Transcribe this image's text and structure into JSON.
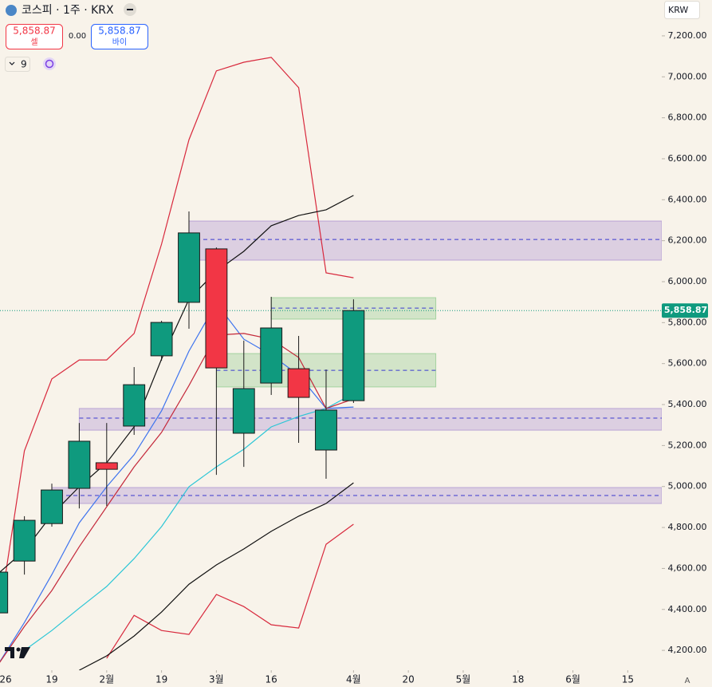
{
  "header": {
    "symbol": "코스피 · 1주 · KRX",
    "sell_price": "5,858.87",
    "sell_label": "셀",
    "spread": "0.00",
    "buy_price": "5,858.87",
    "buy_label": "바이",
    "indicators_count": "9",
    "currency": "KRW",
    "auto_label": "A"
  },
  "chart_data": {
    "type": "candlestick",
    "x": [
      -2,
      -1,
      0,
      1,
      2,
      3,
      4,
      5,
      6,
      7,
      8,
      9,
      10,
      11
    ],
    "open": [
      4383,
      4636,
      4819,
      4991,
      5116,
      5295,
      5638,
      5899,
      6160,
      5260,
      5505,
      5575,
      5178,
      5419
    ],
    "high": [
      4600,
      4855,
      5014,
      5310,
      5310,
      5583,
      5809,
      6343,
      6167,
      5712,
      5926,
      5735,
      5571,
      5914
    ],
    "low": [
      4350,
      4570,
      4804,
      4893,
      4905,
      5252,
      5614,
      5770,
      5057,
      5096,
      5447,
      5213,
      5038,
      5408
    ],
    "close": [
      4582,
      4835,
      4983,
      5221,
      5084,
      5497,
      5801,
      6238,
      5579,
      5478,
      5774,
      5435,
      5373,
      5858.87
    ],
    "up_color": "#0f9a7e",
    "down_color": "#f23645",
    "lines": [
      {
        "color": "#d8283c",
        "values": [
          4297,
          5174,
          5525,
          5618,
          5618,
          5747,
          6183,
          6693,
          7029,
          7071,
          7095,
          6947,
          6043,
          6019
        ]
      },
      {
        "color": "#d8283c",
        "values": [
          null,
          null,
          null,
          null,
          4161,
          4371,
          4297,
          4278,
          4473,
          4414,
          4325,
          4309,
          4718,
          4816
        ]
      },
      {
        "color": "#111111",
        "values": [
          null,
          null,
          null,
          4103,
          4173,
          4270,
          4387,
          4523,
          4617,
          4695,
          4781,
          4855,
          4917,
          5018
        ]
      },
      {
        "color": "#111111",
        "values": [
          4570,
          4687,
          4862,
          4999,
          5116,
          5291,
          5622,
          5914,
          6051,
          6148,
          6273,
          6323,
          6351,
          6421
        ]
      },
      {
        "color": "#3d73ee",
        "values": [
          4122,
          4336,
          4570,
          4823,
          4999,
          5155,
          5369,
          5661,
          5895,
          5719,
          5642,
          5544,
          5381,
          5388
        ]
      },
      {
        "color": "#2cc6d6",
        "values": [
          null,
          4200,
          4297,
          4406,
          4512,
          4648,
          4804,
          4999,
          5096,
          5182,
          5291,
          5342,
          5381,
          5454
        ]
      },
      {
        "color": "#c4283a",
        "values": [
          4122,
          4317,
          4492,
          4706,
          4901,
          5096,
          5264,
          5493,
          5739,
          5747,
          5719,
          5630,
          5381,
          5427
        ]
      }
    ],
    "zones": [
      {
        "x0": 5,
        "y0": 6105,
        "y1": 6296,
        "mid": 6206,
        "color": "#9c7fcc"
      },
      {
        "x0": 1,
        "y0": 5275,
        "y1": 5381,
        "mid": 5334,
        "color": "#9c7fcc"
      },
      {
        "x0": 0,
        "y0": 4917,
        "y1": 4995,
        "mid": 4956,
        "color": "#9c7fcc"
      },
      {
        "x0": 8,
        "x1": 14,
        "y0": 5817,
        "y1": 5922,
        "mid": 5871,
        "color": "#7cc47c"
      },
      {
        "x0": 6,
        "x1": 14,
        "y0": 5486,
        "y1": 5649,
        "mid": 5567,
        "color": "#7cc47c"
      }
    ],
    "last_price_label": "5,858.87",
    "xlim": [
      -1.89,
      22.24
    ],
    "xticks": [
      {
        "value": -2,
        "label": "26"
      },
      {
        "value": 0,
        "label": "19"
      },
      {
        "value": 2,
        "label": "2월"
      },
      {
        "value": 4,
        "label": "19"
      },
      {
        "value": 6,
        "label": "3월"
      },
      {
        "value": 8,
        "label": "16"
      },
      {
        "value": 11,
        "label": "4월"
      },
      {
        "value": 13,
        "label": "20"
      },
      {
        "value": 15,
        "label": "5월"
      },
      {
        "value": 17,
        "label": "18"
      },
      {
        "value": 19,
        "label": "6월"
      },
      {
        "value": 21,
        "label": "15"
      }
    ],
    "ylim": [
      4103,
      7375
    ],
    "yticks": [
      {
        "value": 4200,
        "label": "4,200.00"
      },
      {
        "value": 4400,
        "label": "4,400.00"
      },
      {
        "value": 4600,
        "label": "4,600.00"
      },
      {
        "value": 4800,
        "label": "4,800.00"
      },
      {
        "value": 5000,
        "label": "5,000.00"
      },
      {
        "value": 5200,
        "label": "5,200.00"
      },
      {
        "value": 5400,
        "label": "5,400.00"
      },
      {
        "value": 5600,
        "label": "5,600.00"
      },
      {
        "value": 5800,
        "label": "5,800.00"
      },
      {
        "value": 6000,
        "label": "6,000.00"
      },
      {
        "value": 6200,
        "label": "6,200.00"
      },
      {
        "value": 6400,
        "label": "6,400.00"
      },
      {
        "value": 6600,
        "label": "6,600.00"
      },
      {
        "value": 6800,
        "label": "6,800.00"
      },
      {
        "value": 7000,
        "label": "7,000.00"
      },
      {
        "value": 7200,
        "label": "7,200.00"
      }
    ]
  }
}
